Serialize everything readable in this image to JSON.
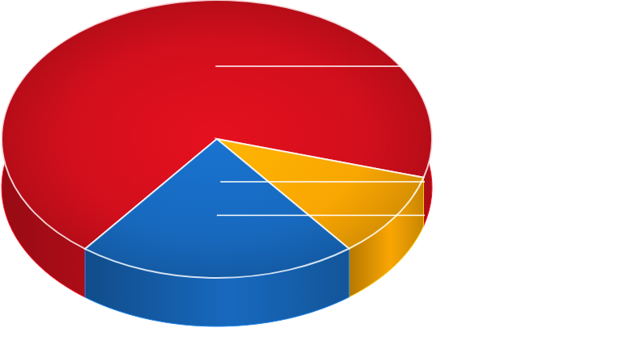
{
  "chart_data": {
    "type": "pie",
    "values": [
      69,
      10,
      21
    ],
    "colors": [
      "#d20f1c",
      "#f9a602",
      "#1769be"
    ]
  }
}
